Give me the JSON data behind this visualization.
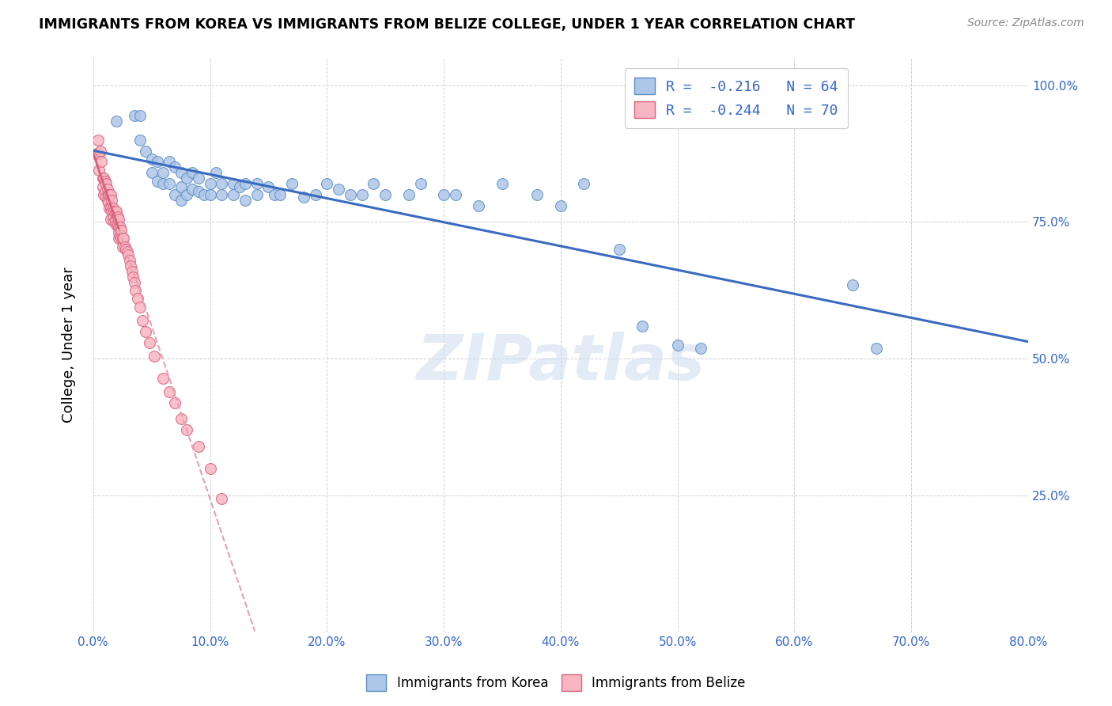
{
  "title": "IMMIGRANTS FROM KOREA VS IMMIGRANTS FROM BELIZE COLLEGE, UNDER 1 YEAR CORRELATION CHART",
  "source": "Source: ZipAtlas.com",
  "ylabel": "College, Under 1 year",
  "ytick_labels": [
    "100.0%",
    "75.0%",
    "50.0%",
    "25.0%"
  ],
  "ytick_values": [
    1.0,
    0.75,
    0.5,
    0.25
  ],
  "xlim": [
    0.0,
    0.8
  ],
  "ylim": [
    0.0,
    1.05
  ],
  "legend_r1": "R =  -0.216   N = 64",
  "legend_r2": "R =  -0.244   N = 70",
  "legend_label1": "Immigrants from Korea",
  "legend_label2": "Immigrants from Belize",
  "korea_color": "#aec6e8",
  "belize_color": "#f7b6c2",
  "korea_edge": "#5b8ec4",
  "belize_edge": "#d9607a",
  "trendline_korea_color": "#3a6bbf",
  "trendline_belize_solid_color": "#d9607a",
  "trendline_belize_dash_color": "#e8a0b0",
  "watermark": "ZIPatlas",
  "korea_x": [
    0.02,
    0.035,
    0.04,
    0.04,
    0.045,
    0.05,
    0.05,
    0.055,
    0.055,
    0.06,
    0.06,
    0.065,
    0.065,
    0.07,
    0.07,
    0.075,
    0.075,
    0.075,
    0.08,
    0.08,
    0.085,
    0.085,
    0.09,
    0.09,
    0.095,
    0.1,
    0.1,
    0.105,
    0.11,
    0.11,
    0.12,
    0.12,
    0.125,
    0.13,
    0.13,
    0.14,
    0.14,
    0.15,
    0.155,
    0.16,
    0.17,
    0.18,
    0.19,
    0.2,
    0.21,
    0.22,
    0.23,
    0.24,
    0.25,
    0.27,
    0.28,
    0.3,
    0.31,
    0.33,
    0.35,
    0.38,
    0.4,
    0.42,
    0.45,
    0.47,
    0.5,
    0.52,
    0.65,
    0.67
  ],
  "korea_y": [
    0.935,
    0.945,
    0.945,
    0.9,
    0.88,
    0.865,
    0.84,
    0.86,
    0.825,
    0.84,
    0.82,
    0.86,
    0.82,
    0.85,
    0.8,
    0.84,
    0.815,
    0.79,
    0.83,
    0.8,
    0.84,
    0.81,
    0.83,
    0.805,
    0.8,
    0.82,
    0.8,
    0.84,
    0.82,
    0.8,
    0.82,
    0.8,
    0.815,
    0.82,
    0.79,
    0.82,
    0.8,
    0.815,
    0.8,
    0.8,
    0.82,
    0.795,
    0.8,
    0.82,
    0.81,
    0.8,
    0.8,
    0.82,
    0.8,
    0.8,
    0.82,
    0.8,
    0.8,
    0.78,
    0.82,
    0.8,
    0.78,
    0.82,
    0.7,
    0.56,
    0.525,
    0.52,
    0.635,
    0.52
  ],
  "belize_x": [
    0.003,
    0.004,
    0.005,
    0.005,
    0.006,
    0.007,
    0.008,
    0.008,
    0.009,
    0.009,
    0.01,
    0.01,
    0.011,
    0.011,
    0.012,
    0.012,
    0.013,
    0.013,
    0.014,
    0.014,
    0.015,
    0.015,
    0.015,
    0.016,
    0.016,
    0.017,
    0.017,
    0.018,
    0.018,
    0.019,
    0.019,
    0.02,
    0.02,
    0.021,
    0.021,
    0.022,
    0.022,
    0.022,
    0.022,
    0.023,
    0.023,
    0.024,
    0.024,
    0.025,
    0.025,
    0.026,
    0.027,
    0.028,
    0.029,
    0.03,
    0.031,
    0.032,
    0.033,
    0.034,
    0.035,
    0.036,
    0.038,
    0.04,
    0.042,
    0.045,
    0.048,
    0.052,
    0.06,
    0.065,
    0.07,
    0.075,
    0.08,
    0.09,
    0.1,
    0.11
  ],
  "belize_y": [
    0.875,
    0.9,
    0.875,
    0.845,
    0.88,
    0.86,
    0.83,
    0.815,
    0.83,
    0.8,
    0.825,
    0.805,
    0.82,
    0.795,
    0.81,
    0.79,
    0.8,
    0.785,
    0.8,
    0.775,
    0.8,
    0.775,
    0.755,
    0.79,
    0.77,
    0.775,
    0.76,
    0.77,
    0.75,
    0.77,
    0.75,
    0.77,
    0.745,
    0.76,
    0.745,
    0.755,
    0.74,
    0.73,
    0.72,
    0.74,
    0.725,
    0.735,
    0.72,
    0.72,
    0.705,
    0.72,
    0.705,
    0.7,
    0.695,
    0.69,
    0.68,
    0.67,
    0.66,
    0.65,
    0.64,
    0.625,
    0.61,
    0.595,
    0.57,
    0.55,
    0.53,
    0.505,
    0.465,
    0.44,
    0.42,
    0.39,
    0.37,
    0.34,
    0.3,
    0.245
  ]
}
